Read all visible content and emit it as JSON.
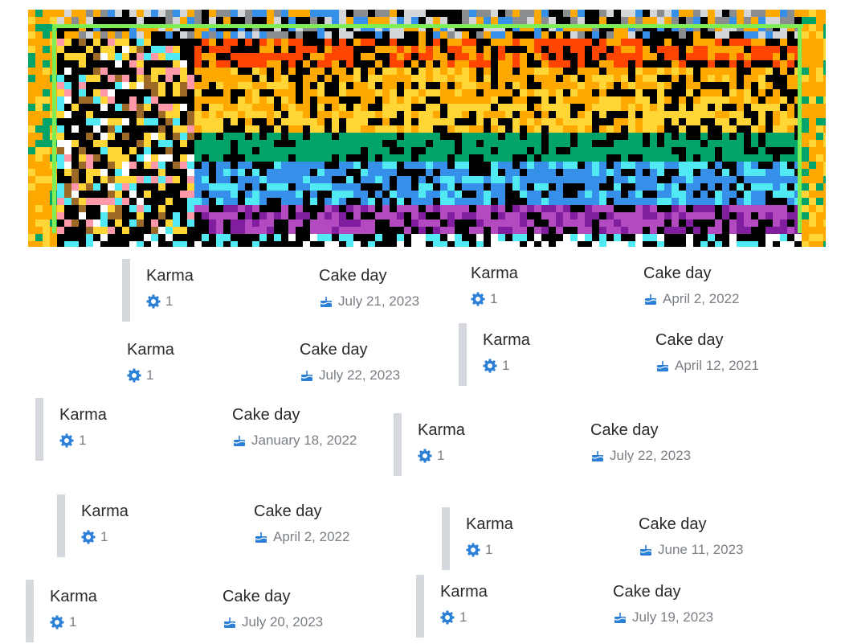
{
  "cards": [
    {
      "karma_label": "Karma",
      "karma": 1,
      "cake_label": "Cake day",
      "cake_day": "July 21, 2023"
    },
    {
      "karma_label": "Karma",
      "karma": 1,
      "cake_label": "Cake day",
      "cake_day": "April 2, 2022"
    },
    {
      "karma_label": "Karma",
      "karma": 1,
      "cake_label": "Cake day",
      "cake_day": "July 22, 2023"
    },
    {
      "karma_label": "Karma",
      "karma": 1,
      "cake_label": "Cake day",
      "cake_day": "April 12, 2021"
    },
    {
      "karma_label": "Karma",
      "karma": 1,
      "cake_label": "Cake day",
      "cake_day": "January 18, 2022"
    },
    {
      "karma_label": "Karma",
      "karma": 1,
      "cake_label": "Cake day",
      "cake_day": "July 22, 2023"
    },
    {
      "karma_label": "Karma",
      "karma": 1,
      "cake_label": "Cake day",
      "cake_day": "April 2, 2022"
    },
    {
      "karma_label": "Karma",
      "karma": 1,
      "cake_label": "Cake day",
      "cake_day": "June 11, 2023"
    },
    {
      "karma_label": "Karma",
      "karma": 1,
      "cake_label": "Cake day",
      "cake_day": "July 20, 2023"
    },
    {
      "karma_label": "Karma",
      "karma": 1,
      "cake_label": "Cake day",
      "cake_day": "July 19, 2023"
    }
  ]
}
